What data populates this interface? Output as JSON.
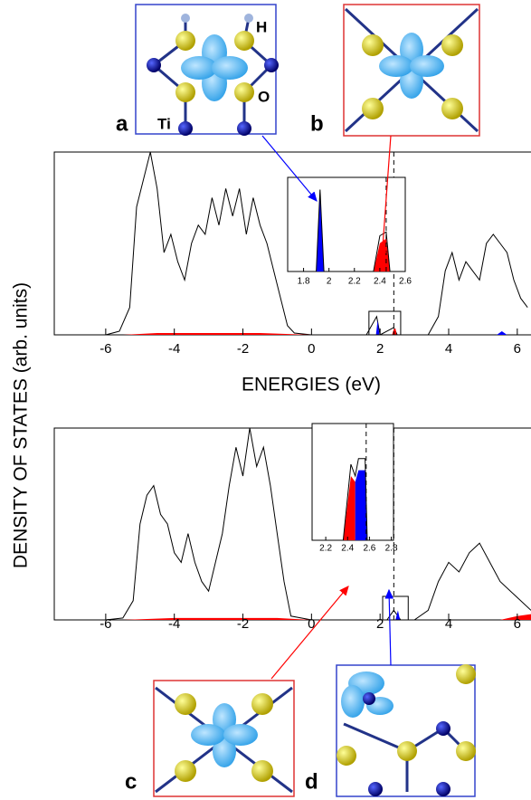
{
  "figure": {
    "ylabel": "DENSITY OF STATES (arb. units)",
    "xlabel": "ENERGIES (eV)"
  },
  "structures": [
    {
      "label": "a",
      "atoms": [
        "Ti",
        "H",
        "O"
      ]
    },
    {
      "label": "b"
    },
    {
      "label": "c"
    },
    {
      "label": "d"
    }
  ],
  "chart_data": [
    {
      "type": "line",
      "xlim": [
        -7.5,
        6.4
      ],
      "ylim": [
        0,
        1
      ],
      "xticks": [
        -6,
        -4,
        -2,
        0,
        2,
        4,
        6
      ],
      "vline": 2.4,
      "series": [
        {
          "color": "#000000",
          "x": [
            -7.5,
            -6,
            -5.6,
            -5.3,
            -5.1,
            -4.9,
            -4.7,
            -4.5,
            -4.3,
            -4.1,
            -3.9,
            -3.7,
            -3.5,
            -3.3,
            -3.1,
            -2.9,
            -2.7,
            -2.5,
            -2.3,
            -2.1,
            -1.9,
            -1.7,
            -1.5,
            -1.3,
            -1.1,
            -0.9,
            -0.7,
            -0.5,
            0,
            1.6,
            1.9,
            2.0,
            2.4,
            2.5,
            3.4,
            3.7,
            3.9,
            4.1,
            4.3,
            4.5,
            4.7,
            4.9,
            5.1,
            5.3,
            5.5,
            5.7,
            5.9,
            6.1,
            6.3
          ],
          "values": [
            0,
            0,
            0.02,
            0.15,
            0.7,
            0.85,
            1.0,
            0.8,
            0.45,
            0.55,
            0.4,
            0.3,
            0.5,
            0.6,
            0.55,
            0.75,
            0.6,
            0.8,
            0.65,
            0.8,
            0.55,
            0.75,
            0.6,
            0.5,
            0.35,
            0.2,
            0.05,
            0.01,
            0,
            0,
            0.1,
            0,
            0.04,
            0,
            0,
            0.1,
            0.35,
            0.45,
            0.3,
            0.4,
            0.35,
            0.3,
            0.5,
            0.55,
            0.5,
            0.45,
            0.3,
            0.2,
            0.15
          ]
        },
        {
          "color": "#ff0000",
          "fill": true,
          "x": [
            -5.5,
            -4.5,
            -3,
            -1.5,
            0
          ],
          "values": [
            0,
            0.01,
            0.01,
            0.01,
            0
          ]
        },
        {
          "color": "#ff0000",
          "fill": true,
          "x": [
            2.35,
            2.4,
            2.45,
            2.48
          ],
          "values": [
            0,
            0.03,
            0.035,
            0
          ]
        },
        {
          "color": "#0000ff",
          "fill": true,
          "x": [
            1.88,
            1.93,
            1.98
          ],
          "values": [
            0,
            0.08,
            0
          ]
        },
        {
          "color": "#0000ff",
          "fill": true,
          "x": [
            5.4,
            5.55,
            5.7
          ],
          "values": [
            0,
            0.02,
            0
          ]
        }
      ]
    },
    {
      "type": "line",
      "xlim": [
        -7.5,
        6.4
      ],
      "ylim": [
        0,
        1
      ],
      "xticks": [
        -6,
        -4,
        -2,
        0,
        2,
        4,
        6
      ],
      "vline": 2.4,
      "series": [
        {
          "color": "#000000",
          "x": [
            -7.5,
            -6,
            -5.5,
            -5.2,
            -5.0,
            -4.8,
            -4.6,
            -4.4,
            -4.2,
            -4.0,
            -3.8,
            -3.6,
            -3.4,
            -3.2,
            -3.0,
            -2.8,
            -2.6,
            -2.4,
            -2.2,
            -2.0,
            -1.8,
            -1.6,
            -1.4,
            -1.2,
            -1.0,
            -0.8,
            -0.6,
            0,
            2.2,
            2.4,
            2.6,
            3.0,
            3.4,
            3.7,
            4.0,
            4.3,
            4.6,
            4.9,
            5.2,
            5.5,
            5.8,
            6.1,
            6.4
          ],
          "values": [
            0,
            0,
            0.01,
            0.1,
            0.5,
            0.65,
            0.7,
            0.55,
            0.5,
            0.35,
            0.3,
            0.45,
            0.3,
            0.2,
            0.15,
            0.3,
            0.45,
            0.7,
            0.9,
            0.75,
            1.0,
            0.8,
            0.9,
            0.7,
            0.45,
            0.2,
            0.02,
            0,
            0,
            0.05,
            0,
            0,
            0.05,
            0.2,
            0.3,
            0.25,
            0.35,
            0.4,
            0.3,
            0.2,
            0.15,
            0.1,
            0.05
          ]
        },
        {
          "color": "#ff0000",
          "fill": true,
          "x": [
            -5.5,
            -4,
            -2.5,
            -1,
            0
          ],
          "values": [
            0,
            0.01,
            0.01,
            0.01,
            0
          ]
        },
        {
          "color": "#ff0000",
          "fill": true,
          "x": [
            5.5,
            6,
            6.4
          ],
          "values": [
            0,
            0.02,
            0.03
          ]
        },
        {
          "color": "#0000ff",
          "fill": true,
          "x": [
            2.45,
            2.52,
            2.58
          ],
          "values": [
            0,
            0.05,
            0
          ]
        }
      ]
    },
    {
      "type": "area",
      "xlim": [
        1.675,
        2.6
      ],
      "ylim": [
        0,
        1
      ],
      "xticks": [
        1.8,
        2,
        2.2,
        2.4,
        2.6
      ],
      "vline": 2.45,
      "series": [
        {
          "color": "#0000ff",
          "fill": true,
          "x": [
            1.9,
            1.93,
            1.96
          ],
          "values": [
            0,
            0.85,
            0
          ]
        },
        {
          "color": "#ff0000",
          "fill": true,
          "x": [
            2.35,
            2.4,
            2.45,
            2.48
          ],
          "values": [
            0,
            0.3,
            0.35,
            0
          ]
        },
        {
          "color": "#000000",
          "x": [
            1.675,
            1.9,
            1.93,
            1.96,
            2.35,
            2.4,
            2.45,
            2.48,
            2.6
          ],
          "values": [
            0,
            0,
            0.87,
            0,
            0,
            0.38,
            0.42,
            0,
            0
          ]
        }
      ]
    },
    {
      "type": "area",
      "xlim": [
        2.075,
        2.82
      ],
      "ylim": [
        0,
        1
      ],
      "xticks": [
        2.2,
        2.4,
        2.6,
        2.8
      ],
      "vline": 2.57,
      "series": [
        {
          "color": "#ff0000",
          "fill": true,
          "x": [
            2.36,
            2.43,
            2.47
          ],
          "values": [
            0,
            0.55,
            0.5
          ]
        },
        {
          "color": "#0000ff",
          "fill": true,
          "x": [
            2.47,
            2.5,
            2.56,
            2.58
          ],
          "values": [
            0.5,
            0.6,
            0.6,
            0
          ]
        },
        {
          "color": "#000000",
          "x": [
            2.075,
            2.36,
            2.43,
            2.47,
            2.5,
            2.56,
            2.58,
            2.82
          ],
          "values": [
            0,
            0,
            0.65,
            0.55,
            0.7,
            0.7,
            0,
            0
          ]
        }
      ]
    }
  ]
}
